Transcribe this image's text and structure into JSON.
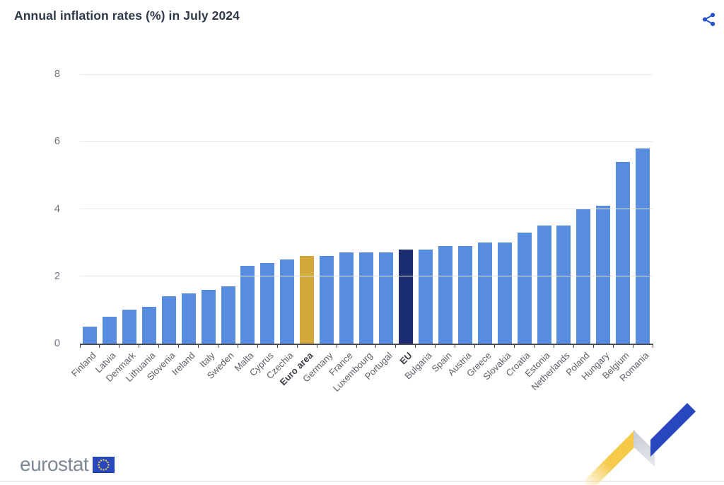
{
  "header": {
    "title": "Annual inflation rates (%) in July 2024"
  },
  "chart_data": {
    "type": "bar",
    "title": "Annual inflation rates (%) in July 2024",
    "xlabel": "",
    "ylabel": "",
    "ylim": [
      0,
      8
    ],
    "yticks": [
      0,
      2,
      4,
      6,
      8
    ],
    "grid": true,
    "legend_position": "none",
    "categories": [
      "Finland",
      "Latvia",
      "Denmark",
      "Lithuania",
      "Slovenia",
      "Ireland",
      "Italy",
      "Sweden",
      "Malta",
      "Cyprus",
      "Czechia",
      "Euro area",
      "Germany",
      "France",
      "Luxembourg",
      "Portugal",
      "EU",
      "Bulgaria",
      "Spain",
      "Austria",
      "Greece",
      "Slovakia",
      "Croatia",
      "Estonia",
      "Netherlands",
      "Poland",
      "Hungary",
      "Belgium",
      "Romania"
    ],
    "values": [
      0.5,
      0.8,
      1.0,
      1.1,
      1.4,
      1.5,
      1.6,
      1.7,
      2.3,
      2.4,
      2.5,
      2.6,
      2.6,
      2.7,
      2.7,
      2.7,
      2.8,
      2.8,
      2.9,
      2.9,
      3.0,
      3.0,
      3.3,
      3.5,
      3.5,
      4.0,
      4.1,
      5.4,
      5.8
    ],
    "emphasized_categories": [
      "Euro area",
      "EU"
    ],
    "colors": {
      "default": "#588CE0",
      "Euro area": "#D4A93C",
      "EU": "#1B2C70"
    }
  },
  "icons": {
    "share": "share-icon",
    "share_color": "#2A52C8",
    "eu_flag": "eu-flag-icon"
  },
  "footer": {
    "logo_text": "eurostat",
    "ribbon_colors": {
      "yellow": "#F5C843",
      "gray": "#C7CBD3",
      "blue": "#2847BE"
    }
  }
}
